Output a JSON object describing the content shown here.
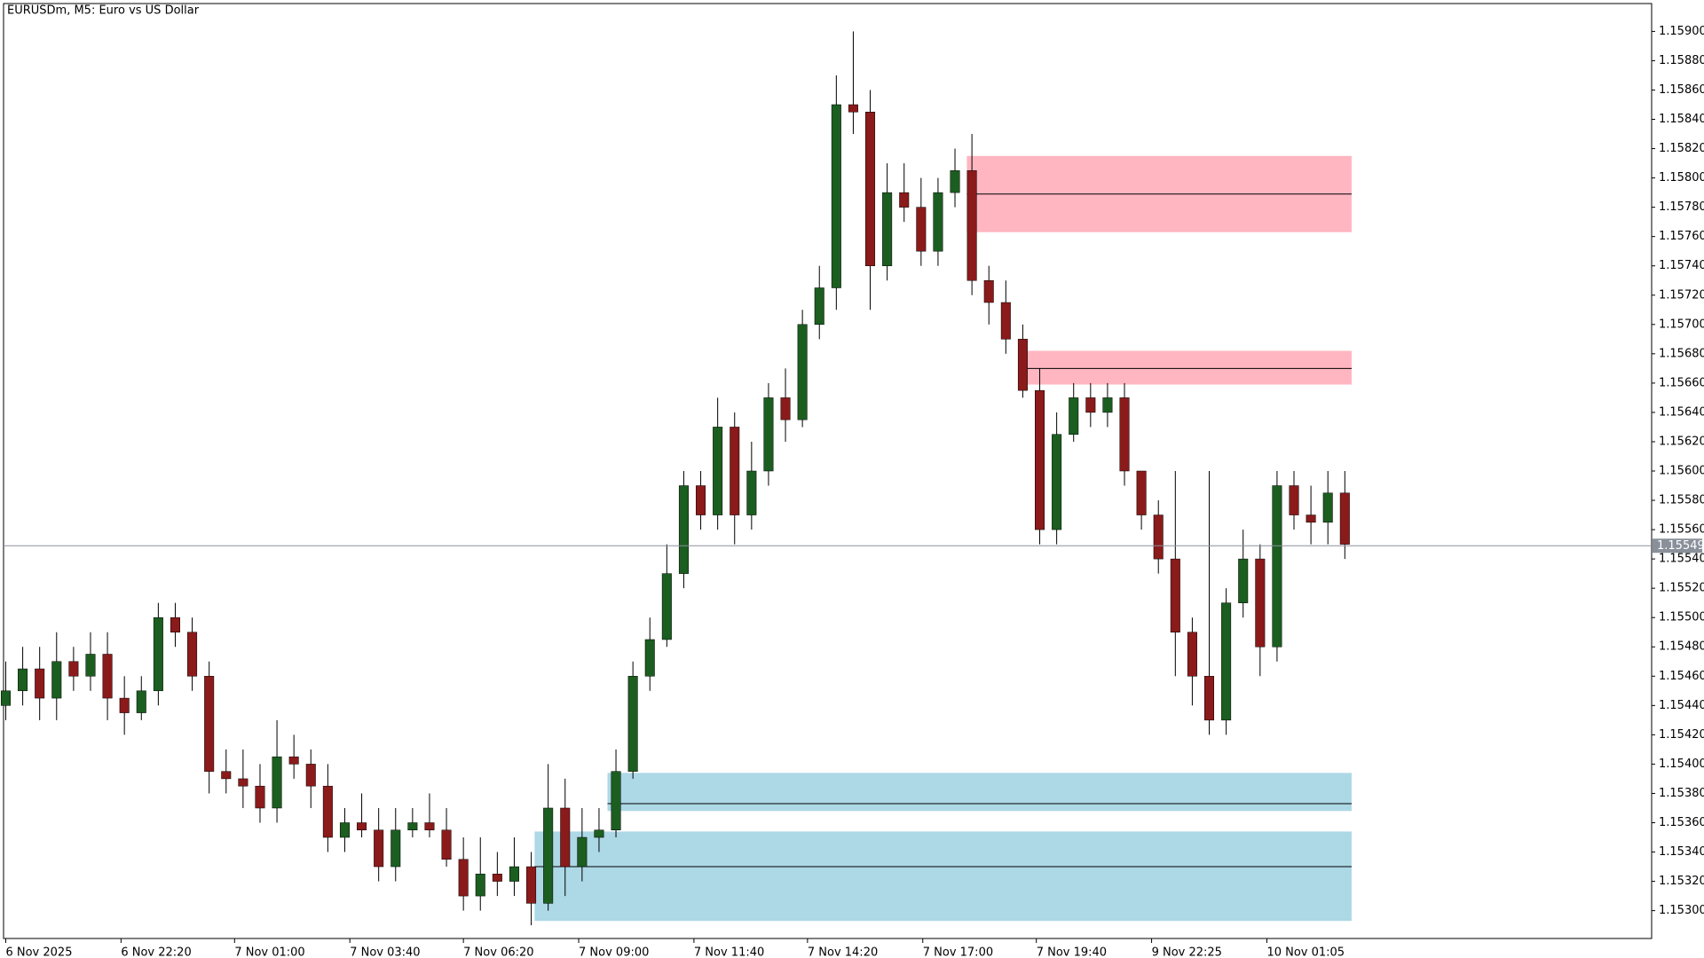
{
  "chart_data": {
    "type": "candlestick",
    "title": "EURUSDm, M5:  Euro vs US Dollar",
    "open": [
      1.1544,
      1.1545,
      1.15465,
      1.15445,
      1.1547,
      1.1546,
      1.15475,
      1.15445,
      1.15435,
      1.1545,
      1.155,
      1.1549,
      1.1546,
      1.15395,
      1.1539,
      1.15385,
      1.1537,
      1.15405,
      1.154,
      1.15385,
      1.1535,
      1.1536,
      1.15355,
      1.1533,
      1.15355,
      1.1536,
      1.15355,
      1.15335,
      1.1531,
      1.15325,
      1.1532,
      1.1533,
      1.15305,
      1.1537,
      1.1533,
      1.1535,
      1.15355,
      1.15395,
      1.1546,
      1.15485,
      1.1553,
      1.1559,
      1.1557,
      1.1563,
      1.1557,
      1.156,
      1.1565,
      1.15635,
      1.157,
      1.15725,
      1.1585,
      1.15845,
      1.1574,
      1.1579,
      1.1578,
      1.1575,
      1.1579,
      1.15805,
      1.1573,
      1.15715,
      1.1569,
      1.15655,
      1.1556,
      1.15625,
      1.1565,
      1.1564,
      1.1565,
      1.156,
      1.1557,
      1.1554,
      1.1549,
      1.1546,
      1.1543,
      1.1551,
      1.1554,
      1.1548,
      1.1559,
      1.1557,
      1.15565,
      1.15585
    ],
    "high": [
      1.1547,
      1.1548,
      1.1548,
      1.1549,
      1.1548,
      1.1549,
      1.1549,
      1.1546,
      1.1546,
      1.1551,
      1.1551,
      1.155,
      1.1547,
      1.1541,
      1.1541,
      1.154,
      1.1543,
      1.1542,
      1.1541,
      1.154,
      1.1537,
      1.1538,
      1.1537,
      1.1537,
      1.1537,
      1.1538,
      1.1537,
      1.1535,
      1.1535,
      1.1534,
      1.1535,
      1.1534,
      1.154,
      1.1539,
      1.1537,
      1.1537,
      1.1541,
      1.1547,
      1.155,
      1.1555,
      1.156,
      1.156,
      1.1565,
      1.1564,
      1.1562,
      1.1566,
      1.1567,
      1.1571,
      1.1574,
      1.1587,
      1.159,
      1.1586,
      1.1581,
      1.1581,
      1.158,
      1.158,
      1.1582,
      1.1583,
      1.1574,
      1.1573,
      1.157,
      1.1567,
      1.1564,
      1.1566,
      1.1566,
      1.1566,
      1.1566,
      1.156,
      1.1558,
      1.156,
      1.155,
      1.156,
      1.1552,
      1.1556,
      1.1555,
      1.156,
      1.156,
      1.1559,
      1.156,
      1.156
    ],
    "low": [
      1.1543,
      1.1544,
      1.1543,
      1.1543,
      1.1545,
      1.1545,
      1.1543,
      1.1542,
      1.1543,
      1.1544,
      1.1548,
      1.1545,
      1.1538,
      1.1538,
      1.1537,
      1.1536,
      1.1536,
      1.1539,
      1.1537,
      1.1534,
      1.1534,
      1.1535,
      1.1532,
      1.1532,
      1.1535,
      1.1535,
      1.1533,
      1.153,
      1.153,
      1.1531,
      1.1531,
      1.1529,
      1.153,
      1.1531,
      1.1532,
      1.1534,
      1.1535,
      1.1539,
      1.1545,
      1.1548,
      1.1552,
      1.1556,
      1.1556,
      1.1555,
      1.1556,
      1.1559,
      1.1562,
      1.1563,
      1.1569,
      1.1571,
      1.1583,
      1.1571,
      1.1573,
      1.1577,
      1.1574,
      1.1574,
      1.1578,
      1.1572,
      1.157,
      1.1568,
      1.1565,
      1.1555,
      1.1555,
      1.1562,
      1.1563,
      1.1563,
      1.1559,
      1.1556,
      1.1553,
      1.1546,
      1.1544,
      1.1542,
      1.1542,
      1.155,
      1.1546,
      1.1547,
      1.1556,
      1.1555,
      1.1555,
      1.1554
    ],
    "close": [
      1.1545,
      1.15465,
      1.15445,
      1.1547,
      1.1546,
      1.15475,
      1.15445,
      1.15435,
      1.1545,
      1.155,
      1.1549,
      1.1546,
      1.15395,
      1.1539,
      1.15385,
      1.1537,
      1.15405,
      1.154,
      1.15385,
      1.1535,
      1.1536,
      1.15355,
      1.1533,
      1.15355,
      1.1536,
      1.15355,
      1.15335,
      1.1531,
      1.15325,
      1.1532,
      1.1533,
      1.15305,
      1.1537,
      1.1533,
      1.1535,
      1.15355,
      1.15395,
      1.1546,
      1.15485,
      1.1553,
      1.1559,
      1.1557,
      1.1563,
      1.1557,
      1.156,
      1.1565,
      1.15635,
      1.157,
      1.15725,
      1.1585,
      1.15845,
      1.1574,
      1.1579,
      1.1578,
      1.1575,
      1.1579,
      1.15805,
      1.1573,
      1.15715,
      1.1569,
      1.15655,
      1.1556,
      1.15625,
      1.1565,
      1.1564,
      1.1565,
      1.156,
      1.1557,
      1.1554,
      1.1549,
      1.1546,
      1.1543,
      1.1551,
      1.1554,
      1.1548,
      1.1559,
      1.1557,
      1.15565,
      1.15585,
      1.1555
    ],
    "up_color": "#1b5e20",
    "down_color": "#8b1a1a",
    "wick_color": "#000000",
    "xlim": [
      -0.13,
      97.1
    ],
    "xticks": [
      {
        "value": 0,
        "label": "6 Nov 2025"
      },
      {
        "value": 6.8,
        "label": "6 Nov 22:20"
      },
      {
        "value": 13.5,
        "label": "7 Nov 01:00"
      },
      {
        "value": 20.3,
        "label": "7 Nov 03:40"
      },
      {
        "value": 27,
        "label": "7 Nov 06:20"
      },
      {
        "value": 33.8,
        "label": "7 Nov 09:00"
      },
      {
        "value": 40.6,
        "label": "7 Nov 11:40"
      },
      {
        "value": 47.3,
        "label": "7 Nov 14:20"
      },
      {
        "value": 54.1,
        "label": "7 Nov 17:00"
      },
      {
        "value": 60.8,
        "label": "7 Nov 19:40"
      },
      {
        "value": 67.6,
        "label": "9 Nov 22:25"
      },
      {
        "value": 74.4,
        "label": "10 Nov 01:05"
      }
    ],
    "ylim": [
      1.15281,
      1.15919
    ],
    "yticks": [
      {
        "value": 1.153,
        "label": "1.15300"
      },
      {
        "value": 1.1532,
        "label": "1.15320"
      },
      {
        "value": 1.1534,
        "label": "1.15340"
      },
      {
        "value": 1.1536,
        "label": "1.15360"
      },
      {
        "value": 1.1538,
        "label": "1.15380"
      },
      {
        "value": 1.154,
        "label": "1.15400"
      },
      {
        "value": 1.1542,
        "label": "1.15420"
      },
      {
        "value": 1.1544,
        "label": "1.15440"
      },
      {
        "value": 1.1546,
        "label": "1.15460"
      },
      {
        "value": 1.1548,
        "label": "1.15480"
      },
      {
        "value": 1.155,
        "label": "1.15500"
      },
      {
        "value": 1.1552,
        "label": "1.15520"
      },
      {
        "value": 1.1554,
        "label": "1.15540"
      },
      {
        "value": 1.1556,
        "label": "1.15560"
      },
      {
        "value": 1.1558,
        "label": "1.15580"
      },
      {
        "value": 1.156,
        "label": "1.15600"
      },
      {
        "value": 1.1562,
        "label": "1.15620"
      },
      {
        "value": 1.1564,
        "label": "1.15640"
      },
      {
        "value": 1.1566,
        "label": "1.15660"
      },
      {
        "value": 1.1568,
        "label": "1.15680"
      },
      {
        "value": 1.157,
        "label": "1.15700"
      },
      {
        "value": 1.1572,
        "label": "1.15720"
      },
      {
        "value": 1.1574,
        "label": "1.15740"
      },
      {
        "value": 1.1576,
        "label": "1.15760"
      },
      {
        "value": 1.1578,
        "label": "1.15780"
      },
      {
        "value": 1.158,
        "label": "1.15800"
      },
      {
        "value": 1.1582,
        "label": "1.15820"
      },
      {
        "value": 1.1584,
        "label": "1.15840"
      },
      {
        "value": 1.1586,
        "label": "1.15860"
      },
      {
        "value": 1.1588,
        "label": "1.15880"
      },
      {
        "value": 1.159,
        "label": "1.15900"
      }
    ],
    "zones": [
      {
        "start": 56.7,
        "top": 1.15815,
        "bottom": 1.15763,
        "mid": 1.15789,
        "color": "#ffb6c1"
      },
      {
        "start": 60,
        "top": 1.15682,
        "bottom": 1.15659,
        "mid": 1.1567,
        "color": "#ffb6c1"
      },
      {
        "start": 35.5,
        "top": 1.15394,
        "bottom": 1.15368,
        "mid": 1.15373,
        "color": "#add8e6"
      },
      {
        "start": 31.2,
        "top": 1.15354,
        "bottom": 1.15293,
        "mid": 1.1533,
        "color": "#add8e6"
      }
    ],
    "current_price": 1.15549,
    "current_price_color": "#8a909a"
  }
}
